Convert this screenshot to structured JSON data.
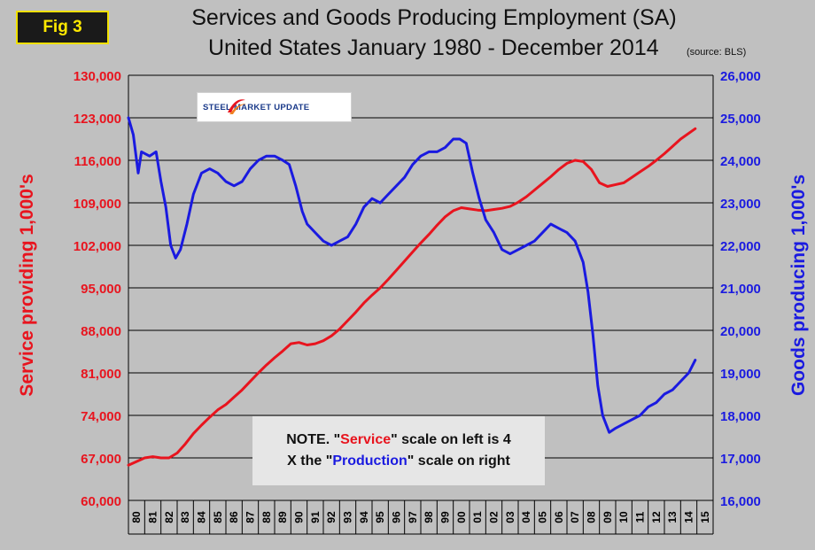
{
  "figure": {
    "badge": "Fig 3",
    "title_line1": "Services and Goods Producing Employment (SA)",
    "title_line2": "United States January 1980 - December 2014",
    "source": "(source: BLS)"
  },
  "logo": {
    "text": "STEEL MARKET UPDATE"
  },
  "note": {
    "line1_prefix": "NOTE. \"",
    "line1_service": "Service",
    "line1_suffix": "\" scale on left  is 4",
    "line2_prefix": "X the \"",
    "line2_production": "Production",
    "line2_suffix": "\" scale on right"
  },
  "colors": {
    "service": "#e8141e",
    "goods": "#1a1ae0",
    "plot_bg": "#c0c0c0",
    "grid": "#000000"
  },
  "chart_data": {
    "type": "line",
    "title": "Services and Goods Producing Employment (SA) United States January 1980 - December 2014",
    "xlabel": "",
    "x_categories": [
      "80",
      "81",
      "82",
      "83",
      "84",
      "85",
      "86",
      "87",
      "88",
      "89",
      "90",
      "91",
      "92",
      "93",
      "94",
      "95",
      "96",
      "97",
      "98",
      "99",
      "00",
      "01",
      "02",
      "03",
      "04",
      "05",
      "06",
      "07",
      "08",
      "09",
      "10",
      "11",
      "12",
      "13",
      "14",
      "15"
    ],
    "y_left": {
      "label": "Service providing 1,000's",
      "range": [
        60000,
        130000
      ],
      "ticks": [
        "60,000",
        "67,000",
        "74,000",
        "81,000",
        "88,000",
        "95,000",
        "102,000",
        "109,000",
        "116,000",
        "123,000",
        "130,000"
      ]
    },
    "y_right": {
      "label": "Goods producing 1,000's",
      "range": [
        16000,
        26000
      ],
      "ticks": [
        "16,000",
        "17,000",
        "18,000",
        "19,000",
        "20,000",
        "21,000",
        "22,000",
        "23,000",
        "24,000",
        "25,000",
        "26,000"
      ]
    },
    "grid": "horizontal",
    "series": [
      {
        "name": "Service providing",
        "axis": "left",
        "color": "#e8141e",
        "x": [
          1980.0,
          1980.5,
          1981.0,
          1981.5,
          1982.0,
          1982.5,
          1983.0,
          1983.5,
          1984.0,
          1984.5,
          1985.0,
          1985.5,
          1986.0,
          1986.5,
          1987.0,
          1987.5,
          1988.0,
          1988.5,
          1989.0,
          1989.5,
          1990.0,
          1990.5,
          1991.0,
          1991.5,
          1992.0,
          1992.5,
          1993.0,
          1993.5,
          1994.0,
          1994.5,
          1995.0,
          1995.5,
          1996.0,
          1996.5,
          1997.0,
          1997.5,
          1998.0,
          1998.5,
          1999.0,
          1999.5,
          2000.0,
          2000.5,
          2001.0,
          2001.5,
          2002.0,
          2002.5,
          2003.0,
          2003.5,
          2004.0,
          2004.5,
          2005.0,
          2005.5,
          2006.0,
          2006.5,
          2007.0,
          2007.5,
          2008.0,
          2008.5,
          2009.0,
          2009.5,
          2010.0,
          2010.5,
          2011.0,
          2011.5,
          2012.0,
          2012.5,
          2013.0,
          2013.5,
          2014.0,
          2014.9
        ],
        "values": [
          65800,
          66400,
          67000,
          67200,
          67000,
          67000,
          67800,
          69300,
          71000,
          72400,
          73700,
          74900,
          75800,
          77000,
          78200,
          79600,
          81000,
          82300,
          83500,
          84600,
          85800,
          86000,
          85600,
          85800,
          86300,
          87100,
          88200,
          89600,
          91000,
          92500,
          93800,
          95000,
          96400,
          97900,
          99400,
          100900,
          102400,
          103800,
          105300,
          106700,
          107700,
          108200,
          108000,
          107800,
          107700,
          107900,
          108100,
          108400,
          109100,
          110000,
          111100,
          112200,
          113300,
          114500,
          115500,
          116000,
          115800,
          114500,
          112300,
          111700,
          112000,
          112300,
          113200,
          114100,
          115000,
          116000,
          117100,
          118300,
          119500,
          121200
        ]
      },
      {
        "name": "Goods producing",
        "axis": "right",
        "color": "#1a1ae0",
        "x": [
          1980.0,
          1980.3,
          1980.6,
          1980.8,
          1981.3,
          1981.7,
          1982.0,
          1982.3,
          1982.6,
          1982.9,
          1983.2,
          1983.6,
          1984.0,
          1984.5,
          1985.0,
          1985.5,
          1986.0,
          1986.5,
          1987.0,
          1987.5,
          1988.0,
          1988.5,
          1989.0,
          1989.5,
          1989.9,
          1990.3,
          1990.7,
          1991.0,
          1991.5,
          1992.0,
          1992.5,
          1993.0,
          1993.5,
          1994.0,
          1994.5,
          1995.0,
          1995.5,
          1996.0,
          1996.5,
          1997.0,
          1997.5,
          1998.0,
          1998.5,
          1999.0,
          1999.5,
          2000.0,
          2000.4,
          2000.8,
          2001.2,
          2001.6,
          2002.0,
          2002.5,
          2003.0,
          2003.5,
          2004.0,
          2004.5,
          2005.0,
          2005.5,
          2006.0,
          2006.5,
          2007.0,
          2007.5,
          2008.0,
          2008.3,
          2008.6,
          2008.9,
          2009.2,
          2009.6,
          2010.0,
          2010.5,
          2011.0,
          2011.5,
          2012.0,
          2012.5,
          2013.0,
          2013.5,
          2014.0,
          2014.5,
          2014.9
        ],
        "values": [
          25000,
          24600,
          23700,
          24200,
          24100,
          24200,
          23500,
          22900,
          22000,
          21700,
          21900,
          22500,
          23200,
          23700,
          23800,
          23700,
          23500,
          23400,
          23500,
          23800,
          24000,
          24100,
          24100,
          24000,
          23900,
          23400,
          22800,
          22500,
          22300,
          22100,
          22000,
          22100,
          22200,
          22500,
          22900,
          23100,
          23000,
          23200,
          23400,
          23600,
          23900,
          24100,
          24200,
          24200,
          24300,
          24500,
          24500,
          24400,
          23700,
          23100,
          22600,
          22300,
          21900,
          21800,
          21900,
          22000,
          22100,
          22300,
          22500,
          22400,
          22300,
          22100,
          21600,
          20900,
          19900,
          18700,
          18000,
          17600,
          17700,
          17800,
          17900,
          18000,
          18200,
          18300,
          18500,
          18600,
          18800,
          19000,
          19300
        ]
      }
    ]
  }
}
